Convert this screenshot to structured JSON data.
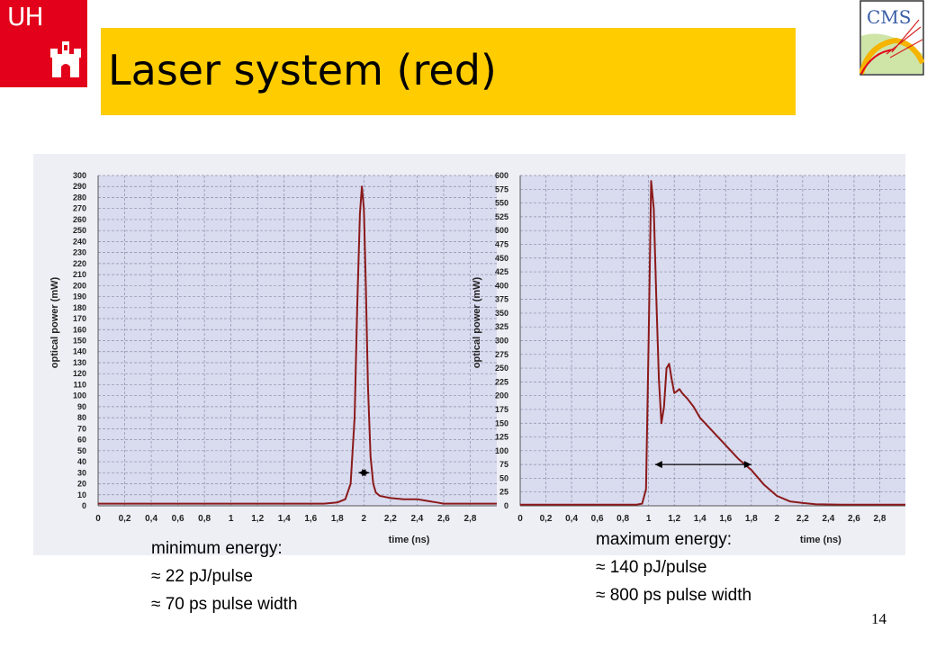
{
  "header": {
    "logo_text": "UHH",
    "logo_text_display": "UH",
    "title": "Laser system (red)",
    "cms_logo_text": "CMS"
  },
  "left_notes": {
    "line1": "minimum energy:",
    "line2": "≈ 22 pJ/pulse",
    "line3": "≈ 70 ps pulse width"
  },
  "right_notes": {
    "line1": "maximum energy:",
    "line2": "≈ 140 pJ/pulse",
    "line3": "≈ 800 ps pulse width"
  },
  "page_number": "14",
  "colors": {
    "accent_title": "#ffcc00",
    "logo_red": "#e2001a",
    "curve": "#8b1a1a",
    "plot_bg": "#d9dbef"
  },
  "chart_data": [
    {
      "type": "line",
      "title": "",
      "xlabel": "time (ns)",
      "ylabel": "optical power (mW)",
      "xlim": [
        0,
        3
      ],
      "ylim": [
        0,
        300
      ],
      "x_ticks": [
        0,
        0.2,
        0.4,
        0.6,
        0.8,
        1,
        1.2,
        1.4,
        1.6,
        1.8,
        2,
        2.2,
        2.4,
        2.6,
        2.8
      ],
      "x_tick_labels": [
        "0",
        "0,2",
        "0,4",
        "0,6",
        "0,8",
        "1",
        "1,2",
        "1,4",
        "1,6",
        "1,8",
        "2",
        "2,2",
        "2,4",
        "2,6",
        "2,8"
      ],
      "y_ticks": [
        0,
        10,
        20,
        30,
        40,
        50,
        60,
        70,
        80,
        90,
        100,
        110,
        120,
        130,
        140,
        150,
        160,
        170,
        180,
        190,
        200,
        210,
        220,
        230,
        240,
        250,
        260,
        270,
        280,
        290,
        300
      ],
      "grid": true,
      "annotation": "pulse width marker ≈ 70 ps at ~30 mW",
      "marker": {
        "x_start": 1.96,
        "x_end": 2.04,
        "y": 30
      },
      "series": [
        {
          "x": [
            0,
            1.7,
            1.8,
            1.86,
            1.9,
            1.93,
            1.95,
            1.97,
            1.985,
            2.0,
            2.015,
            2.03,
            2.05,
            2.07,
            2.09,
            2.12,
            2.16,
            2.2,
            2.3,
            2.4,
            2.45,
            2.5,
            2.55,
            2.6,
            2.7,
            2.9,
            3.0
          ],
          "y": [
            2,
            2,
            3,
            6,
            20,
            80,
            180,
            265,
            290,
            270,
            200,
            110,
            45,
            20,
            12,
            9,
            8,
            7,
            6,
            6,
            5,
            4,
            3,
            2,
            2,
            2,
            2
          ]
        }
      ]
    },
    {
      "type": "line",
      "title": "",
      "xlabel": "time (ns)",
      "ylabel": "optical power (mW)",
      "xlim": [
        0,
        3
      ],
      "ylim": [
        0,
        600
      ],
      "x_ticks": [
        0,
        0.2,
        0.4,
        0.6,
        0.8,
        1,
        1.2,
        1.4,
        1.6,
        1.8,
        2,
        2.2,
        2.4,
        2.6,
        2.8
      ],
      "x_tick_labels": [
        "0",
        "0,2",
        "0,4",
        "0,6",
        "0,8",
        "1",
        "1,2",
        "1,4",
        "1,6",
        "1,8",
        "2",
        "2,2",
        "2,4",
        "2,6",
        "2,8"
      ],
      "y_ticks": [
        0,
        25,
        50,
        75,
        100,
        125,
        150,
        175,
        200,
        225,
        250,
        275,
        300,
        325,
        350,
        375,
        400,
        425,
        450,
        475,
        500,
        525,
        550,
        575,
        600
      ],
      "grid": true,
      "annotation": "pulse width marker ≈ 800 ps at ~75 mW",
      "marker": {
        "x_start": 1.05,
        "x_end": 1.8,
        "y": 75
      },
      "series": [
        {
          "x": [
            0,
            0.9,
            0.95,
            0.98,
            1.0,
            1.02,
            1.04,
            1.06,
            1.08,
            1.1,
            1.12,
            1.14,
            1.16,
            1.18,
            1.2,
            1.22,
            1.24,
            1.26,
            1.28,
            1.3,
            1.35,
            1.4,
            1.5,
            1.6,
            1.7,
            1.8,
            1.9,
            2.0,
            2.1,
            2.2,
            2.3,
            2.5,
            3.0
          ],
          "y": [
            2,
            2,
            4,
            30,
            300,
            590,
            540,
            380,
            230,
            150,
            180,
            250,
            258,
            230,
            205,
            208,
            212,
            205,
            200,
            195,
            180,
            160,
            135,
            110,
            85,
            65,
            38,
            18,
            8,
            5,
            3,
            2,
            2
          ]
        }
      ]
    }
  ]
}
